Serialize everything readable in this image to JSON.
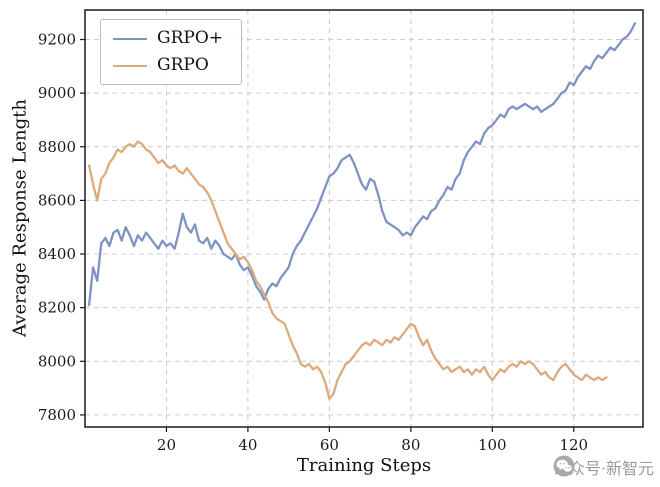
{
  "watermark": {
    "text": "公众号·新智元"
  },
  "chart_data": {
    "type": "line",
    "title": "",
    "xlabel": "Training Steps",
    "ylabel": "Average Response Length",
    "xlim": [
      0,
      137
    ],
    "ylim": [
      7755,
      9310
    ],
    "xticks": [
      20,
      40,
      60,
      80,
      100,
      120
    ],
    "yticks": [
      7800,
      8000,
      8200,
      8400,
      8600,
      8800,
      9000,
      9200
    ],
    "grid": true,
    "grid_style": "dashed",
    "legend_position": "upper-left",
    "series": [
      {
        "name": "GRPO+",
        "key": "grpo-plus",
        "color": "#7d93c2",
        "x_start": 1,
        "x_step": 1,
        "y": [
          8210,
          8350,
          8300,
          8440,
          8460,
          8430,
          8480,
          8490,
          8450,
          8500,
          8470,
          8430,
          8470,
          8450,
          8480,
          8460,
          8440,
          8420,
          8450,
          8430,
          8440,
          8420,
          8480,
          8550,
          8500,
          8480,
          8510,
          8450,
          8440,
          8460,
          8420,
          8450,
          8430,
          8400,
          8390,
          8380,
          8400,
          8360,
          8340,
          8350,
          8320,
          8280,
          8260,
          8230,
          8270,
          8290,
          8280,
          8310,
          8330,
          8350,
          8400,
          8430,
          8450,
          8480,
          8510,
          8540,
          8570,
          8610,
          8650,
          8690,
          8700,
          8720,
          8750,
          8760,
          8770,
          8740,
          8700,
          8660,
          8640,
          8680,
          8670,
          8620,
          8560,
          8520,
          8510,
          8500,
          8490,
          8470,
          8480,
          8470,
          8500,
          8520,
          8540,
          8530,
          8560,
          8570,
          8600,
          8620,
          8650,
          8640,
          8680,
          8700,
          8750,
          8780,
          8800,
          8820,
          8810,
          8850,
          8870,
          8880,
          8900,
          8920,
          8910,
          8940,
          8950,
          8940,
          8950,
          8960,
          8950,
          8940,
          8950,
          8930,
          8940,
          8950,
          8960,
          8980,
          9000,
          9010,
          9040,
          9030,
          9060,
          9080,
          9100,
          9090,
          9120,
          9140,
          9130,
          9150,
          9170,
          9160,
          9180,
          9200,
          9210,
          9230,
          9260
        ]
      },
      {
        "name": "GRPO",
        "key": "grpo",
        "color": "#dbaa7d",
        "x_start": 1,
        "x_step": 1,
        "y": [
          8730,
          8660,
          8600,
          8680,
          8700,
          8740,
          8760,
          8790,
          8780,
          8800,
          8810,
          8800,
          8820,
          8810,
          8790,
          8780,
          8760,
          8740,
          8750,
          8730,
          8720,
          8730,
          8710,
          8700,
          8720,
          8700,
          8680,
          8660,
          8650,
          8630,
          8600,
          8560,
          8520,
          8480,
          8440,
          8420,
          8400,
          8380,
          8390,
          8370,
          8340,
          8300,
          8280,
          8250,
          8220,
          8180,
          8160,
          8150,
          8140,
          8100,
          8060,
          8030,
          7990,
          7980,
          7990,
          7970,
          7980,
          7960,
          7920,
          7860,
          7880,
          7930,
          7960,
          7990,
          8000,
          8020,
          8040,
          8060,
          8070,
          8060,
          8080,
          8070,
          8060,
          8080,
          8070,
          8090,
          8080,
          8100,
          8120,
          8140,
          8130,
          8090,
          8060,
          8080,
          8040,
          8010,
          7990,
          7970,
          7980,
          7960,
          7970,
          7980,
          7960,
          7970,
          7950,
          7970,
          7960,
          7980,
          7950,
          7930,
          7950,
          7970,
          7960,
          7980,
          7990,
          7980,
          8000,
          7990,
          8000,
          7990,
          7970,
          7950,
          7960,
          7940,
          7930,
          7960,
          7980,
          7990,
          7970,
          7950,
          7940,
          7930,
          7950,
          7940,
          7930,
          7940,
          7930,
          7940
        ]
      }
    ]
  }
}
